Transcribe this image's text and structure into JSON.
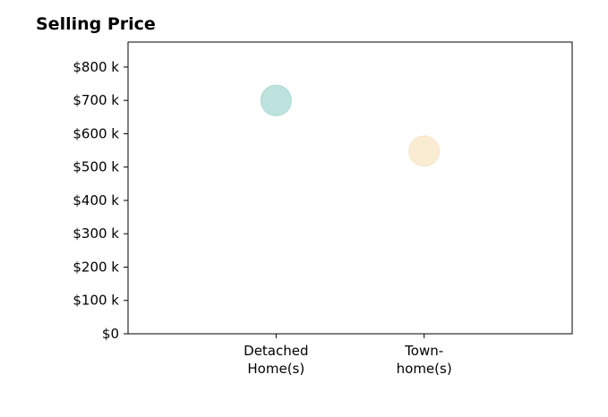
{
  "chart_data": {
    "type": "scatter",
    "title": "Selling Price",
    "xlabel": "",
    "ylabel": "",
    "categories": [
      "Detached\nHome(s)",
      "Town-\nhome(s)"
    ],
    "values": [
      700000,
      548000
    ],
    "point_colors": [
      "#A8D8D2",
      "#F7E6C4"
    ],
    "ylim": [
      0,
      875000
    ],
    "xlim": [
      -1,
      2
    ],
    "yticks": [
      0,
      100000,
      200000,
      300000,
      400000,
      500000,
      600000,
      700000,
      800000
    ],
    "ytick_labels": [
      "$0",
      "$100 k",
      "$200 k",
      "$300 k",
      "$400 k",
      "$500 k",
      "$600 k",
      "$700 k",
      "$800 k"
    ],
    "grid": false,
    "legend": "none"
  }
}
